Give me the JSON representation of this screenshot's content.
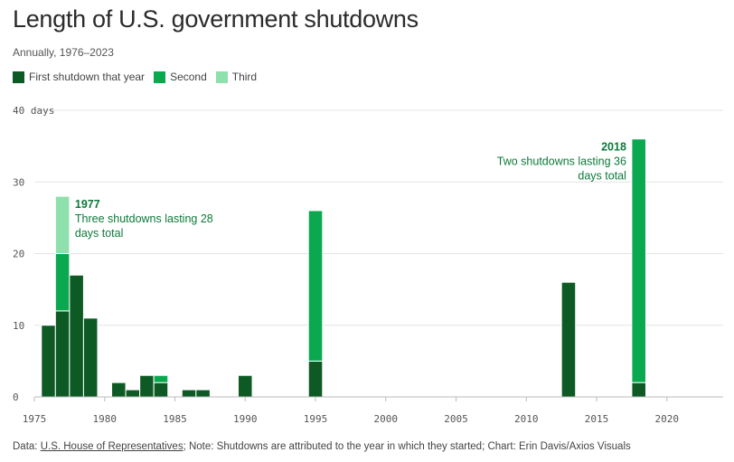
{
  "title": "Length of U.S. government shutdowns",
  "subtitle": "Annually, 1976–2023",
  "legend": {
    "first": "First shutdown that year",
    "second": "Second",
    "third": "Third"
  },
  "colors": {
    "first": "#0d5a24",
    "second": "#0aa84f",
    "third": "#8ee0ad",
    "annotation": "#0b7a3a",
    "grid": "#e3e3e3"
  },
  "footer": {
    "prefix": "Data: ",
    "source": "U.S. House of Representatives",
    "note": "; Note: Shutdowns are attributed to the year in which they started; Chart: Erin Davis/Axios Visuals"
  },
  "chart_data": {
    "type": "bar",
    "stacked": true,
    "x": [
      1976,
      1977,
      1978,
      1979,
      1981,
      1982,
      1983,
      1984,
      1986,
      1987,
      1990,
      1995,
      2013,
      2018
    ],
    "series": [
      {
        "name": "First shutdown that year",
        "values": [
          10,
          12,
          17,
          11,
          2,
          1,
          3,
          2,
          1,
          1,
          3,
          5,
          16,
          2
        ]
      },
      {
        "name": "Second",
        "values": [
          0,
          8,
          0,
          0,
          0,
          0,
          0,
          1,
          0,
          0,
          0,
          21,
          0,
          34
        ]
      },
      {
        "name": "Third",
        "values": [
          0,
          8,
          0,
          0,
          0,
          0,
          0,
          0,
          0,
          0,
          0,
          0,
          0,
          0
        ]
      }
    ],
    "xlim": [
      1975,
      2024
    ],
    "ylim": [
      0,
      40
    ],
    "xticks": [
      1975,
      1980,
      1985,
      1990,
      1995,
      2000,
      2005,
      2010,
      2015,
      2020
    ],
    "yticks": [
      0,
      10,
      20,
      30,
      40
    ],
    "ytick_labels": [
      "0",
      "10",
      "20",
      "30",
      "40 days"
    ],
    "annotations": [
      {
        "title": "1977",
        "lines": [
          "Three shutdowns lasting 28",
          "days total"
        ],
        "year": 1977,
        "value": 28
      },
      {
        "title": "2018",
        "lines": [
          "Two shutdowns lasting 36",
          "days total"
        ],
        "year": 2018,
        "value": 36
      }
    ]
  }
}
